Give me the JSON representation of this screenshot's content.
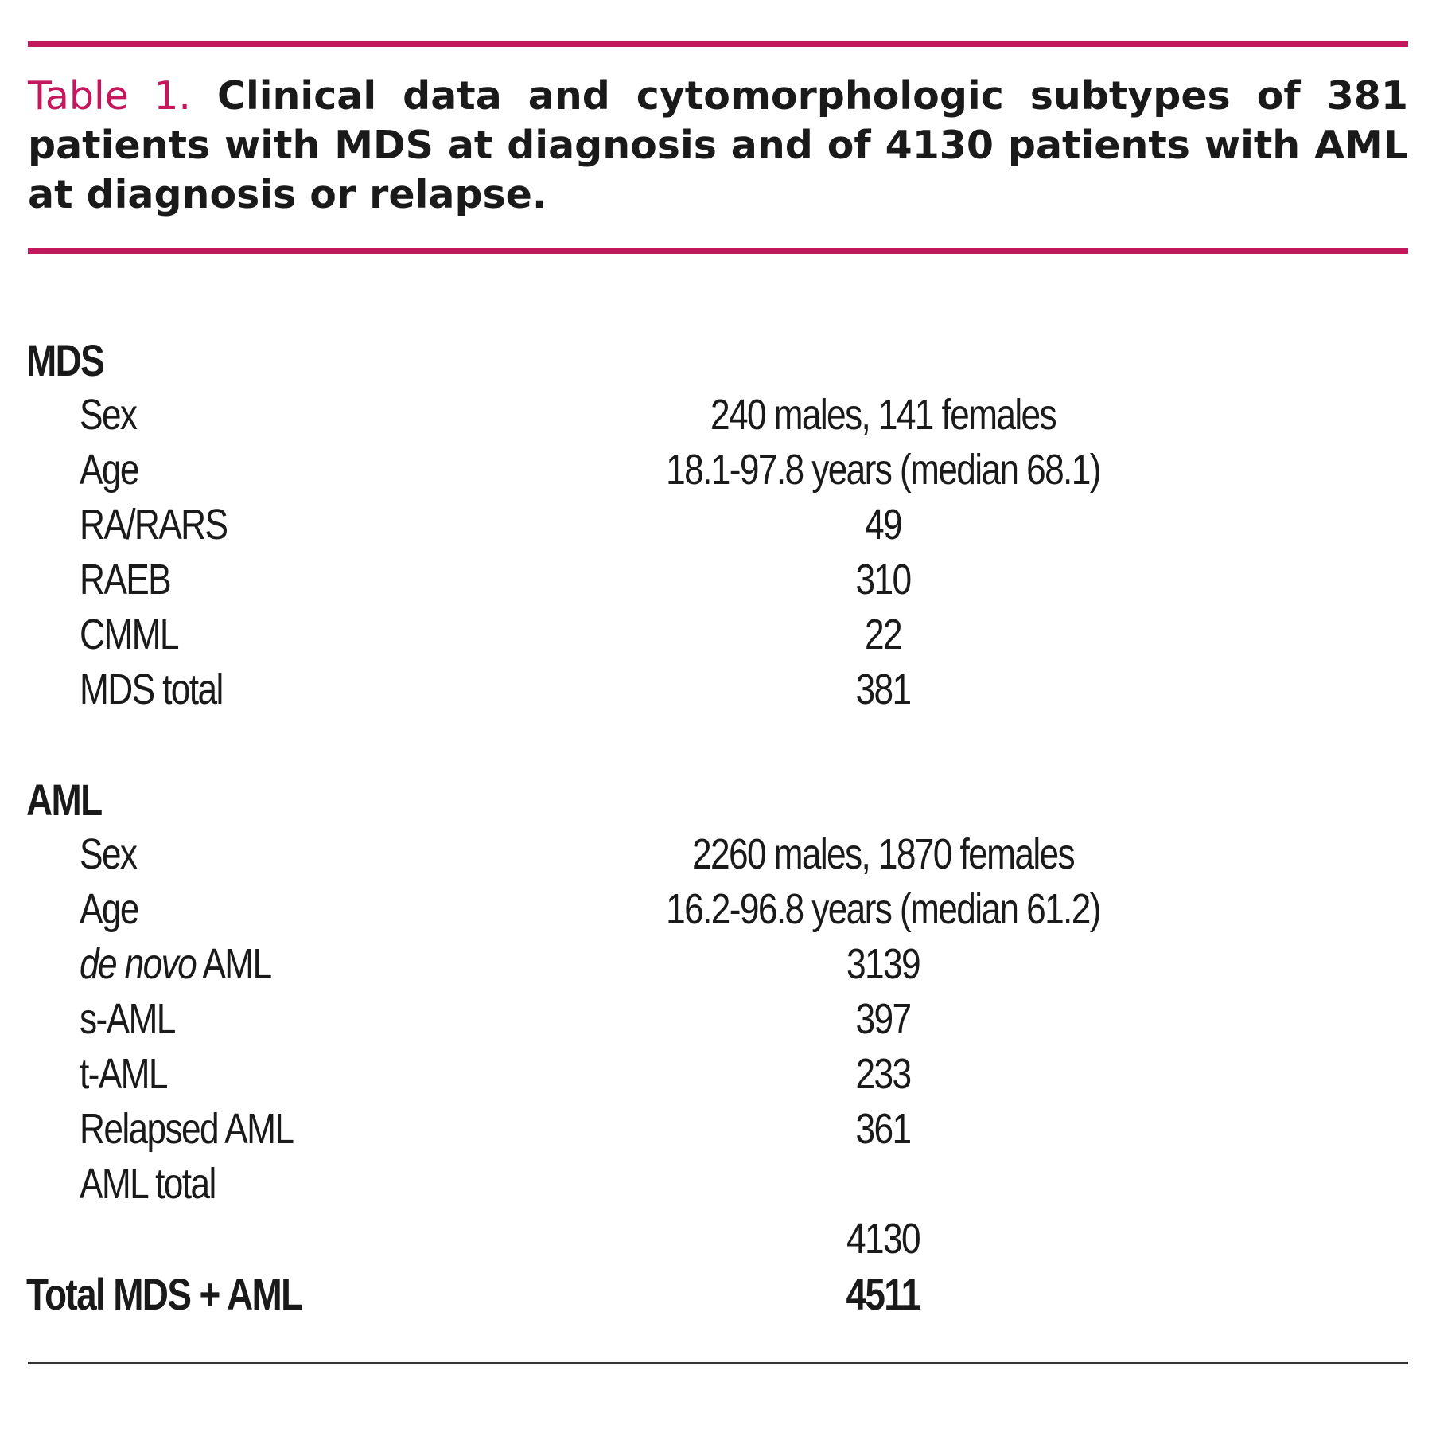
{
  "caption": {
    "label": "Table 1.",
    "text": "Clinical data and cytomorphologic subtypes of 381 patients with MDS at diagnosis and of 4130 patients with AML at diagnosis or relapse."
  },
  "mds": {
    "heading": "MDS",
    "rows": [
      {
        "label": "Sex",
        "value": "240 males, 141 females"
      },
      {
        "label": "Age",
        "value": "18.1-97.8 years (median 68.1)"
      },
      {
        "label": "RA/RARS",
        "value": "49"
      },
      {
        "label": "RAEB",
        "value": "310"
      },
      {
        "label": "CMML",
        "value": "22"
      },
      {
        "label": "MDS total",
        "value": "381"
      }
    ]
  },
  "aml": {
    "heading": "AML",
    "rows": [
      {
        "label": "Sex",
        "value": "2260 males, 1870 females"
      },
      {
        "label": "Age",
        "value": "16.2-96.8 years (median 61.2)"
      },
      {
        "label_italic": "de novo",
        "label": " AML",
        "value": "3139"
      },
      {
        "label": "s-AML",
        "value": "397"
      },
      {
        "label": "t-AML",
        "value": "233"
      },
      {
        "label": "Relapsed AML",
        "value": "361"
      },
      {
        "label": "AML total",
        "value": "4130"
      }
    ]
  },
  "grand_total": {
    "label": "Total MDS + AML",
    "value": "4511"
  },
  "colors": {
    "accent": "#c4185c",
    "text": "#1a1a1a"
  }
}
